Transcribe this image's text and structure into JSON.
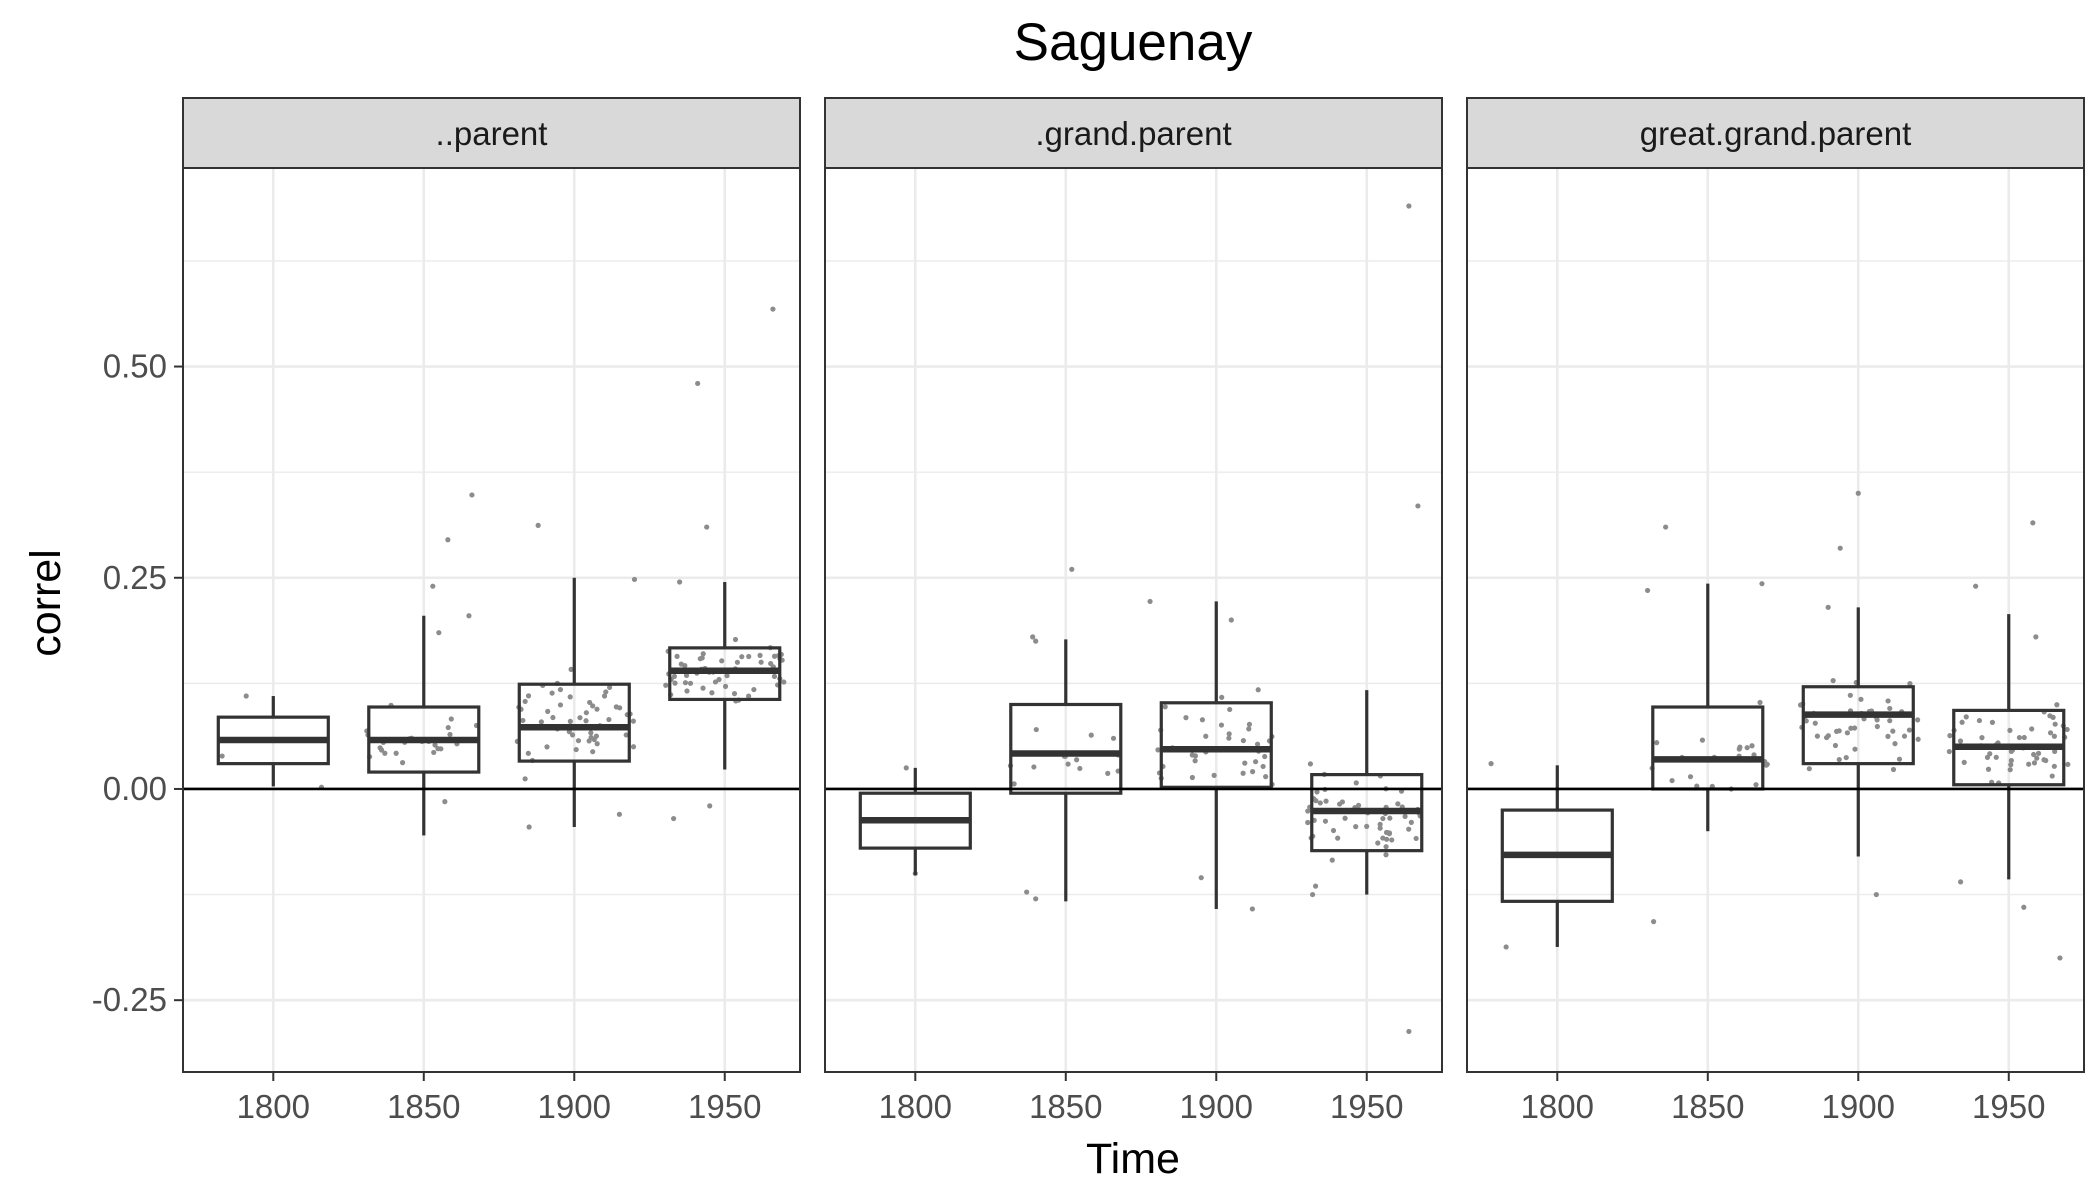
{
  "chart_data": {
    "type": "box",
    "title": "Saguenay",
    "xlabel": "Time",
    "ylabel": "correl",
    "x_ticks": [
      1800,
      1850,
      1900,
      1950
    ],
    "y_ticks": [
      -0.25,
      0.0,
      0.25,
      0.5
    ],
    "y_tick_labels": [
      "-0.25",
      "0.00",
      "0.25",
      "0.50"
    ],
    "xlim": [
      1770,
      1975
    ],
    "ylim": [
      -0.335,
      0.735
    ],
    "hline": 0,
    "grid": true,
    "colors": {
      "box": "#333333",
      "points": "#8c8c8c",
      "strip": "#d9d9d9",
      "grid": "#ebebeb",
      "panel_border": "#333333"
    },
    "panels": [
      {
        "label": "..parent",
        "boxes": [
          {
            "x": 1800,
            "q1": 0.03,
            "median": 0.058,
            "q3": 0.085,
            "wlo": 0.003,
            "whi": 0.11
          },
          {
            "x": 1850,
            "q1": 0.02,
            "median": 0.058,
            "q3": 0.097,
            "wlo": -0.055,
            "whi": 0.205
          },
          {
            "x": 1900,
            "q1": 0.033,
            "median": 0.073,
            "q3": 0.124,
            "wlo": -0.045,
            "whi": 0.25
          },
          {
            "x": 1950,
            "q1": 0.106,
            "median": 0.14,
            "q3": 0.167,
            "wlo": 0.023,
            "whi": 0.245
          }
        ],
        "outliers": [
          [
            1853,
            0.24
          ],
          [
            1855,
            0.185
          ],
          [
            1858,
            0.295
          ],
          [
            1866,
            0.348
          ],
          [
            1865,
            0.205
          ],
          [
            1888,
            0.312
          ],
          [
            1920,
            0.248
          ],
          [
            1935,
            0.245
          ],
          [
            1941,
            0.48
          ],
          [
            1944,
            0.31
          ],
          [
            1966,
            0.568
          ],
          [
            1945,
            -0.02
          ],
          [
            1933,
            -0.035
          ],
          [
            1915,
            -0.03
          ],
          [
            1885,
            -0.045
          ],
          [
            1857,
            -0.015
          ],
          [
            1791,
            0.11
          ],
          [
            1816,
            0.002
          ]
        ],
        "jitter": {
          "seed": 11,
          "counts": [
            1,
            24,
            52,
            58
          ]
        }
      },
      {
        "label": ".grand.parent",
        "boxes": [
          {
            "x": 1800,
            "q1": -0.07,
            "median": -0.037,
            "q3": -0.005,
            "wlo": -0.102,
            "whi": 0.025
          },
          {
            "x": 1850,
            "q1": -0.005,
            "median": 0.042,
            "q3": 0.1,
            "wlo": -0.133,
            "whi": 0.177
          },
          {
            "x": 1900,
            "q1": 0.002,
            "median": 0.047,
            "q3": 0.102,
            "wlo": -0.142,
            "whi": 0.222
          },
          {
            "x": 1950,
            "q1": -0.073,
            "median": -0.026,
            "q3": 0.017,
            "wlo": -0.125,
            "whi": 0.117
          }
        ],
        "outliers": [
          [
            1964,
            0.69
          ],
          [
            1967,
            0.335
          ],
          [
            1964,
            -0.287
          ],
          [
            1852,
            0.26
          ],
          [
            1839,
            0.18
          ],
          [
            1840,
            0.175
          ],
          [
            1837,
            -0.122
          ],
          [
            1840,
            -0.13
          ],
          [
            1878,
            0.222
          ],
          [
            1905,
            0.2
          ],
          [
            1912,
            -0.142
          ],
          [
            1895,
            -0.105
          ],
          [
            1933,
            -0.115
          ],
          [
            1932,
            -0.125
          ],
          [
            1797,
            0.025
          ],
          [
            1800,
            -0.1
          ]
        ],
        "jitter": {
          "seed": 23,
          "counts": [
            0,
            14,
            38,
            56
          ]
        }
      },
      {
        "label": "great.grand.parent",
        "boxes": [
          {
            "x": 1800,
            "q1": -0.133,
            "median": -0.078,
            "q3": -0.025,
            "wlo": -0.187,
            "whi": 0.028
          },
          {
            "x": 1850,
            "q1": 0.0,
            "median": 0.035,
            "q3": 0.097,
            "wlo": -0.05,
            "whi": 0.243
          },
          {
            "x": 1900,
            "q1": 0.03,
            "median": 0.088,
            "q3": 0.121,
            "wlo": -0.08,
            "whi": 0.215
          },
          {
            "x": 1950,
            "q1": 0.005,
            "median": 0.05,
            "q3": 0.093,
            "wlo": -0.107,
            "whi": 0.207
          }
        ],
        "outliers": [
          [
            1783,
            -0.187
          ],
          [
            1778,
            0.03
          ],
          [
            1830,
            0.235
          ],
          [
            1836,
            0.31
          ],
          [
            1832,
            -0.157
          ],
          [
            1868,
            0.243
          ],
          [
            1900,
            0.35
          ],
          [
            1894,
            0.285
          ],
          [
            1906,
            -0.125
          ],
          [
            1958,
            0.315
          ],
          [
            1959,
            0.18
          ],
          [
            1967,
            -0.2
          ],
          [
            1955,
            -0.14
          ],
          [
            1934,
            -0.11
          ],
          [
            1939,
            0.24
          ],
          [
            1890,
            0.215
          ]
        ],
        "jitter": {
          "seed": 37,
          "counts": [
            0,
            22,
            48,
            52
          ]
        }
      }
    ]
  }
}
